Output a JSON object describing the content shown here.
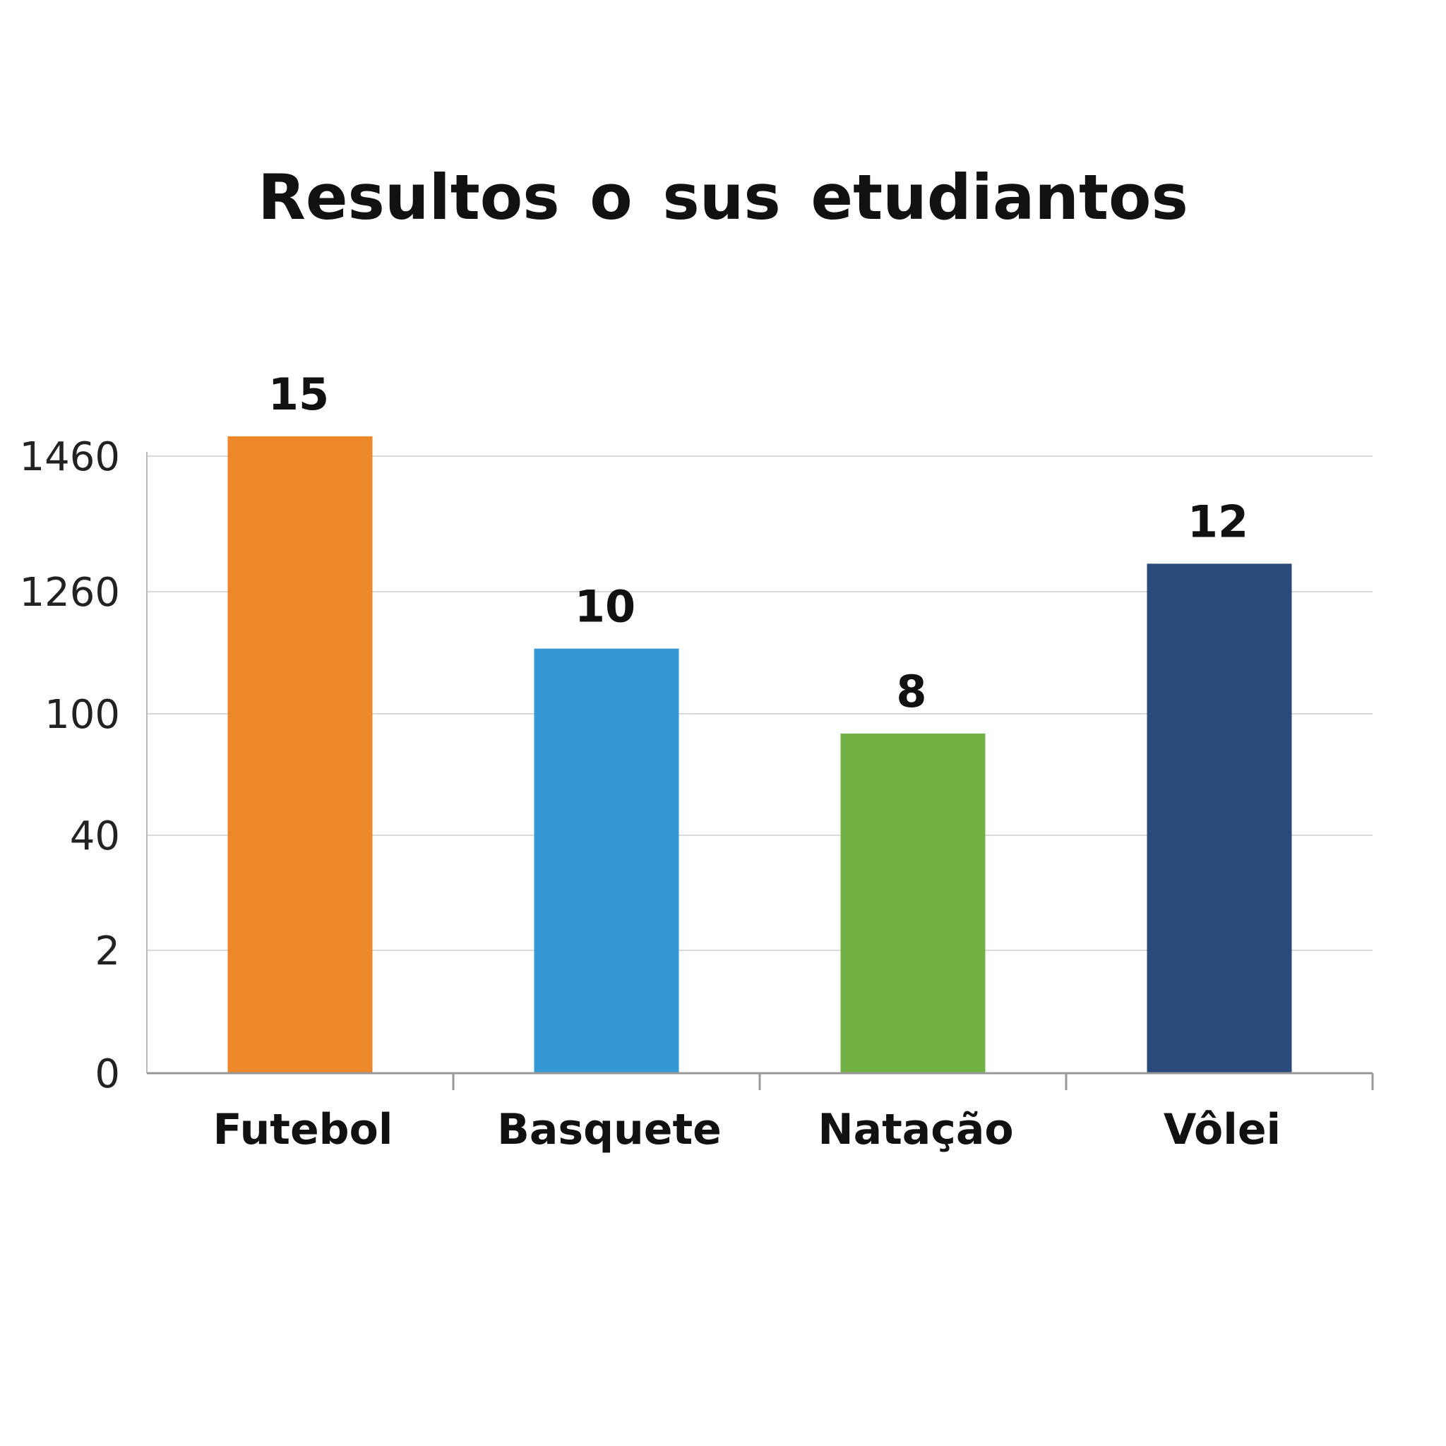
{
  "chart_data": {
    "type": "bar",
    "title": "Resultos o sus etudiantos",
    "xlabel": "",
    "ylabel": "",
    "categories": [
      "Futebol",
      "Basquete",
      "Natação",
      "Vôlei"
    ],
    "values": [
      15,
      10,
      8,
      12
    ],
    "y_ticks": [
      "0",
      "2",
      "40",
      "100",
      "1260",
      "1460"
    ],
    "colors": [
      "#ED882A",
      "#3498D5",
      "#72B244",
      "#2B4A7C"
    ],
    "grid": true,
    "legend": "none"
  }
}
